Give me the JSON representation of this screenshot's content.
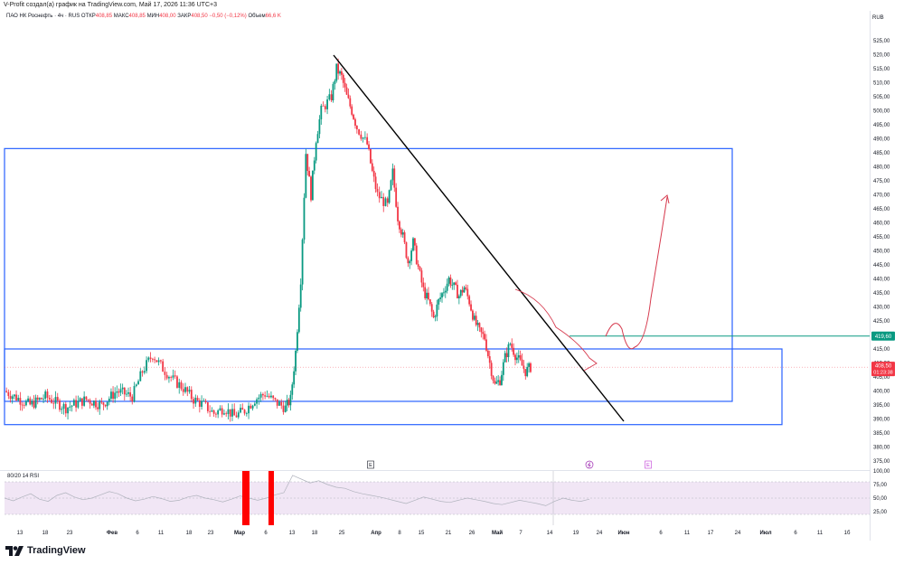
{
  "header": {
    "credit": "V-Profit создал(а) график на TradingView.com, Май 17, 2026 11:36 UTC+3"
  },
  "legend": {
    "symbol": "ПАО НК Роснефть · 4ч · RUS",
    "open_label": "ОТКР",
    "open_value": "408,85",
    "high_label": "МАКС",
    "high_value": "408,85",
    "low_label": "МИН",
    "low_value": "408,00",
    "close_label": "ЗАКР",
    "close_value": "408,50",
    "change": "−0,50 (−0,12%)",
    "volume_label": "Объем",
    "volume_value": "66,6 K"
  },
  "currency": "RUB",
  "price_tags": {
    "level": "419,60",
    "last_price": "408,50",
    "countdown": "01:23:38"
  },
  "event_markers": [
    "E",
    "E"
  ],
  "rsi_title": "80/20 14 RSI",
  "brand": "TradingView",
  "colors": {
    "up": "#089981",
    "down": "#f23645",
    "box": "#2962ff",
    "level": "#089981",
    "trend": "#000000",
    "projection": "#d6394d",
    "rsi_line": "#b0b3bd",
    "rsi_band": "#f1e6f5",
    "rsi_spike": "#ff0000"
  },
  "chart_data": {
    "type": "candlestick",
    "y_axis": {
      "min": 375,
      "max": 525,
      "step": 5,
      "tick_labels": [
        "375,00",
        "380,00",
        "385,00",
        "390,00",
        "395,00",
        "400,00",
        "405,00",
        "410,00",
        "415,00",
        "420,00",
        "425,00",
        "430,00",
        "435,00",
        "440,00",
        "445,00",
        "450,00",
        "455,00",
        "460,00",
        "465,00",
        "470,00",
        "475,00",
        "480,00",
        "485,00",
        "490,00",
        "495,00",
        "500,00",
        "505,00",
        "510,00",
        "515,00",
        "520,00",
        "525,00"
      ]
    },
    "x_tick_labels": [
      "13",
      "18",
      "23",
      "Фев",
      "6",
      "11",
      "18",
      "23",
      "Мар",
      "6",
      "13",
      "18",
      "25",
      "Апр",
      "8",
      "15",
      "21",
      "26",
      "Май",
      "7",
      "14",
      "19",
      "24",
      "Июн",
      "6",
      "11",
      "17",
      "24",
      "Июл",
      "6",
      "11",
      "1б"
    ],
    "price_path": [
      [
        13,
        400
      ],
      [
        18,
        395
      ],
      [
        21,
        398
      ],
      [
        25,
        394
      ],
      [
        29,
        397
      ],
      [
        32,
        395
      ],
      [
        35,
        400
      ],
      [
        38,
        398
      ],
      [
        40,
        407
      ],
      [
        42,
        413
      ],
      [
        44,
        408
      ],
      [
        46,
        404
      ],
      [
        48,
        401
      ],
      [
        50,
        397
      ],
      [
        52,
        395
      ],
      [
        54,
        392
      ],
      [
        56,
        394
      ],
      [
        58,
        391
      ],
      [
        60,
        393
      ],
      [
        62,
        397
      ],
      [
        64,
        399
      ],
      [
        66,
        396
      ],
      [
        68,
        394
      ],
      [
        69,
        397
      ],
      [
        70,
        414
      ],
      [
        71,
        440
      ],
      [
        72,
        485
      ],
      [
        73,
        470
      ],
      [
        74,
        490
      ],
      [
        75,
        500
      ],
      [
        77,
        505
      ],
      [
        78,
        515
      ],
      [
        79,
        512
      ],
      [
        80,
        505
      ],
      [
        81,
        500
      ],
      [
        82,
        494
      ],
      [
        84,
        488
      ],
      [
        85,
        478
      ],
      [
        86,
        470
      ],
      [
        88,
        466
      ],
      [
        89,
        478
      ],
      [
        90,
        462
      ],
      [
        91,
        455
      ],
      [
        92,
        446
      ],
      [
        93,
        453
      ],
      [
        94,
        444
      ],
      [
        95,
        436
      ],
      [
        96,
        432
      ],
      [
        97,
        426
      ],
      [
        98,
        432
      ],
      [
        99,
        436
      ],
      [
        100,
        440
      ],
      [
        101,
        437
      ],
      [
        102,
        434
      ],
      [
        103,
        437
      ],
      [
        104,
        432
      ],
      [
        105,
        425
      ],
      [
        106,
        421
      ],
      [
        107,
        419
      ],
      [
        108,
        410
      ],
      [
        109,
        402
      ],
      [
        110,
        404
      ],
      [
        111,
        412
      ],
      [
        112,
        417
      ],
      [
        113,
        413
      ],
      [
        114,
        410
      ],
      [
        115,
        407
      ],
      [
        116,
        408.5
      ]
    ],
    "horizontal_level": 419.6,
    "last_price": 408.5,
    "rsi": {
      "label": "80/20 14 RSI",
      "levels": [
        25,
        50,
        75,
        100
      ],
      "band": [
        20,
        80
      ],
      "values": [
        50,
        45,
        52,
        58,
        48,
        44,
        55,
        60,
        52,
        47,
        50,
        56,
        62,
        58,
        50,
        45,
        48,
        53,
        49,
        44,
        46,
        52,
        55,
        50,
        47,
        43,
        48,
        54,
        50,
        46,
        50,
        56,
        60,
        92,
        85,
        78,
        82,
        75,
        70,
        68,
        62,
        58,
        55,
        52,
        48,
        44,
        40,
        46,
        52,
        48,
        44,
        42,
        46,
        50,
        47,
        44,
        40,
        38,
        42,
        46,
        43,
        40,
        36,
        44,
        50,
        46,
        44,
        48
      ]
    }
  }
}
